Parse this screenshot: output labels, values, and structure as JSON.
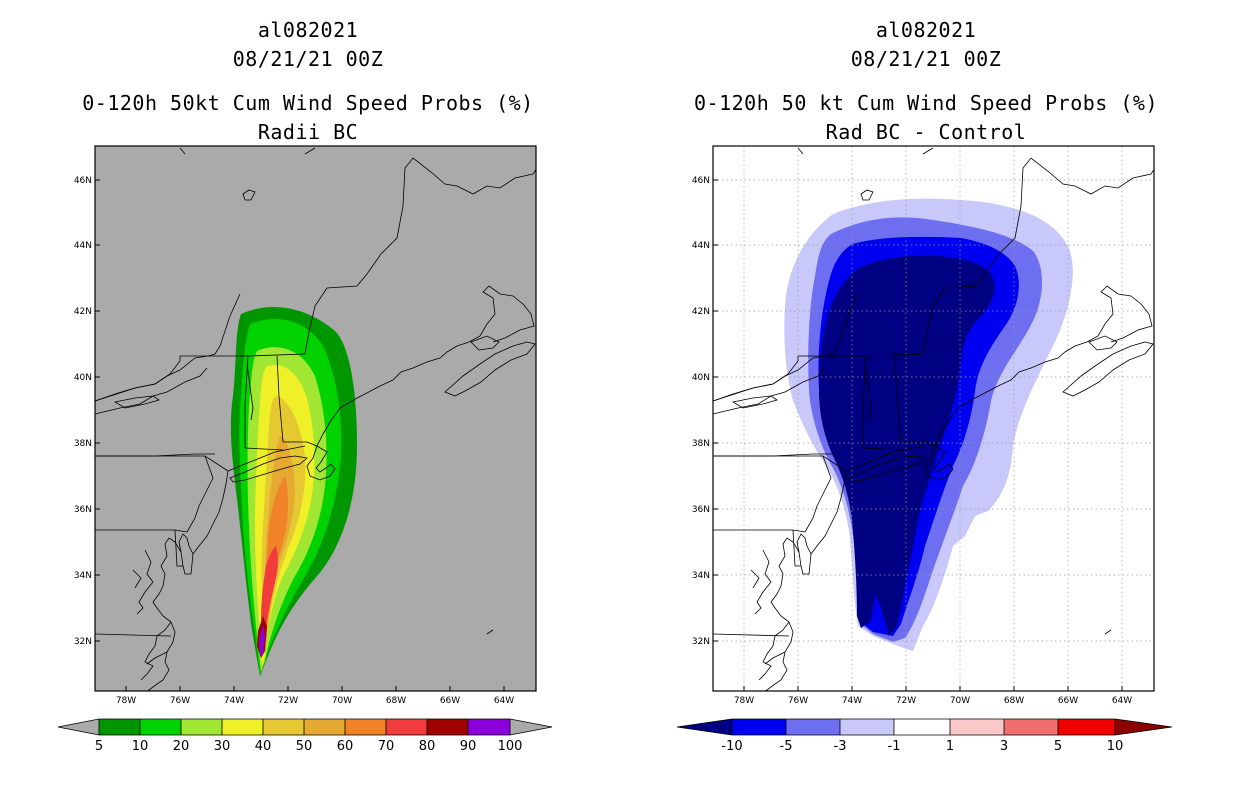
{
  "left_panel": {
    "storm_id": "al082021",
    "datetime": "08/21/21 00Z",
    "title": "0-120h 50kt Cum Wind Speed Probs (%)",
    "subtitle": "Radii BC",
    "lat_labels": [
      "46N",
      "44N",
      "42N",
      "40N",
      "38N",
      "36N",
      "34N",
      "32N"
    ],
    "lon_labels": [
      "78W",
      "76W",
      "74W",
      "72W",
      "70W",
      "68W",
      "66W",
      "64W"
    ],
    "colorbar": {
      "labels": [
        "5",
        "10",
        "20",
        "30",
        "40",
        "50",
        "60",
        "70",
        "80",
        "90",
        "100"
      ],
      "colors": [
        "#009600",
        "#00d200",
        "#a0e632",
        "#f0f028",
        "#e6c832",
        "#e6aa32",
        "#f08228",
        "#f03c3c",
        "#a00000",
        "#8c00dc"
      ]
    }
  },
  "right_panel": {
    "storm_id": "al082021",
    "datetime": "08/21/21 00Z",
    "title": "0-120h 50 kt Cum Wind Speed Probs (%)",
    "subtitle": "Rad BC - Control",
    "lat_labels": [
      "46N",
      "44N",
      "42N",
      "40N",
      "38N",
      "36N",
      "34N",
      "32N"
    ],
    "lon_labels": [
      "78W",
      "76W",
      "74W",
      "72W",
      "70W",
      "68W",
      "66W",
      "64W"
    ],
    "colorbar": {
      "labels": [
        "-10",
        "-5",
        "-3",
        "-1",
        "1",
        "3",
        "5",
        "10"
      ],
      "colors": [
        "#000082",
        "#0000f0",
        "#6e6ef0",
        "#c8c8fa",
        "#ffffff",
        "#fac8c8",
        "#f06e6e",
        "#f00000"
      ]
    }
  }
}
